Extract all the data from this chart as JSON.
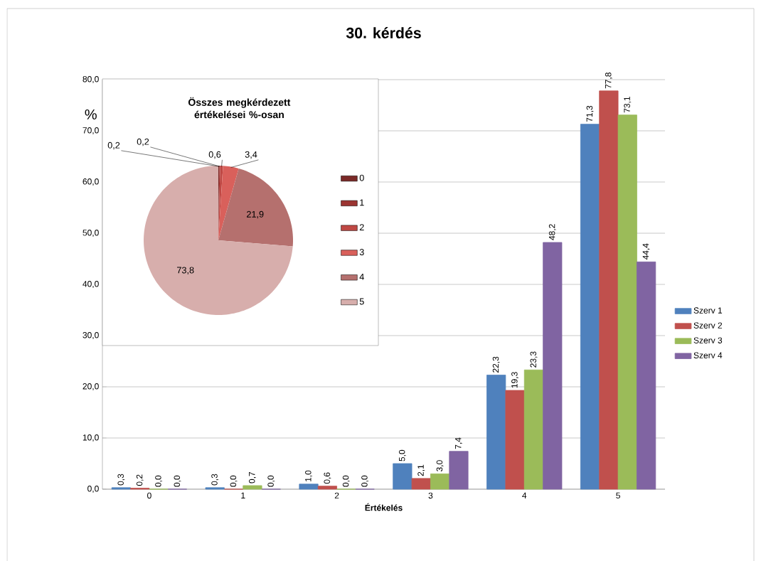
{
  "chart_data": [
    {
      "type": "bar",
      "title": "30. kérdés",
      "xlabel": "Értékelés",
      "ylabel": "%",
      "categories": [
        "0",
        "1",
        "2",
        "3",
        "4",
        "5"
      ],
      "series": [
        {
          "name": "Szerv 1",
          "color": "#4f81bd",
          "values": [
            0.3,
            0.3,
            1.0,
            5.0,
            22.3,
            71.3
          ],
          "value_labels": [
            "0,3",
            "0,3",
            "1,0",
            "5,0",
            "22,3",
            "71,3"
          ]
        },
        {
          "name": "Szerv 2",
          "color": "#c0504d",
          "values": [
            0.2,
            0.0,
            0.6,
            2.1,
            19.3,
            77.8
          ],
          "value_labels": [
            "0,2",
            "0,0",
            "0,6",
            "2,1",
            "19,3",
            "77,8"
          ]
        },
        {
          "name": "Szerv 3",
          "color": "#9bbb59",
          "values": [
            0.0,
            0.7,
            0.0,
            3.0,
            23.3,
            73.1
          ],
          "value_labels": [
            "0,0",
            "0,7",
            "0,0",
            "3,0",
            "23,3",
            "73,1"
          ]
        },
        {
          "name": "Szerv 4",
          "color": "#8064a2",
          "values": [
            0.0,
            0.0,
            0.0,
            7.4,
            48.2,
            44.4
          ],
          "value_labels": [
            "0,0",
            "0,0",
            "0,0",
            "7,4",
            "48,2",
            "44,4"
          ]
        }
      ],
      "ylim": [
        0,
        80
      ],
      "yticks": [
        {
          "value": 0,
          "label": "0,0"
        },
        {
          "value": 10,
          "label": "10,0"
        },
        {
          "value": 20,
          "label": "20,0"
        },
        {
          "value": 30,
          "label": "30,0"
        },
        {
          "value": 40,
          "label": "40,0"
        },
        {
          "value": 50,
          "label": "50,0"
        },
        {
          "value": 60,
          "label": "60,0"
        },
        {
          "value": 70,
          "label": "70,0"
        },
        {
          "value": 80,
          "label": "80,0"
        }
      ],
      "grid": "y",
      "legend": "right"
    },
    {
      "type": "pie",
      "title": "Összes megkérdezett értékelései %-osan",
      "categories": [
        "0",
        "1",
        "2",
        "3",
        "4",
        "5"
      ],
      "values": [
        0.2,
        0.2,
        0.6,
        3.4,
        21.9,
        73.8
      ],
      "value_labels": [
        "0,2",
        "0,2",
        "0,6",
        "3,4",
        "21,9",
        "73,8"
      ],
      "colors": [
        "#7b2927",
        "#9b3431",
        "#bf4844",
        "#d9605b",
        "#b5706e",
        "#d7aeac"
      ],
      "legend": "right"
    }
  ]
}
